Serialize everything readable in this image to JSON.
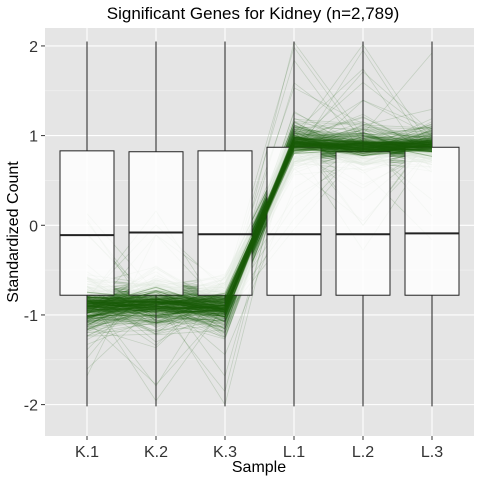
{
  "chart_data": {
    "type": "box+parallel-lines",
    "title": "Significant Genes for Kidney (n=2,789)",
    "xlabel": "Sample",
    "ylabel": "Standardized Count",
    "categories": [
      "K.1",
      "K.2",
      "K.3",
      "L.1",
      "L.2",
      "L.3"
    ],
    "yticks": [
      -2,
      -1,
      0,
      1,
      2
    ],
    "ylim": [
      -2.35,
      2.2
    ],
    "grid": true,
    "line_color": "#1a5c0a",
    "boxes": [
      {
        "category": "K.1",
        "q1": -0.78,
        "median": -0.11,
        "q3": 0.83,
        "whisker_low": -2.02,
        "whisker_high": 2.05
      },
      {
        "category": "K.2",
        "q1": -0.78,
        "median": -0.08,
        "q3": 0.82,
        "whisker_low": -2.02,
        "whisker_high": 2.05
      },
      {
        "category": "K.3",
        "q1": -0.78,
        "median": -0.1,
        "q3": 0.83,
        "whisker_low": -2.02,
        "whisker_high": 2.05
      },
      {
        "category": "L.1",
        "q1": -0.78,
        "median": -0.1,
        "q3": 0.87,
        "whisker_low": -2.02,
        "whisker_high": 2.05
      },
      {
        "category": "L.2",
        "q1": -0.78,
        "median": -0.1,
        "q3": 0.82,
        "whisker_low": -2.02,
        "whisker_high": 2.05
      },
      {
        "category": "L.3",
        "q1": -0.78,
        "median": -0.09,
        "q3": 0.87,
        "whisker_low": -2.02,
        "whisker_high": 2.05
      }
    ],
    "line_profile": {
      "description": "Each gene's standardized count across samples; kidney genes low in K samples, high in L samples.",
      "mean_values": [
        -0.9,
        -0.88,
        -0.9,
        0.9,
        0.88,
        0.88
      ],
      "spread": [
        0.3,
        0.3,
        0.28,
        0.22,
        0.22,
        0.2
      ]
    }
  }
}
